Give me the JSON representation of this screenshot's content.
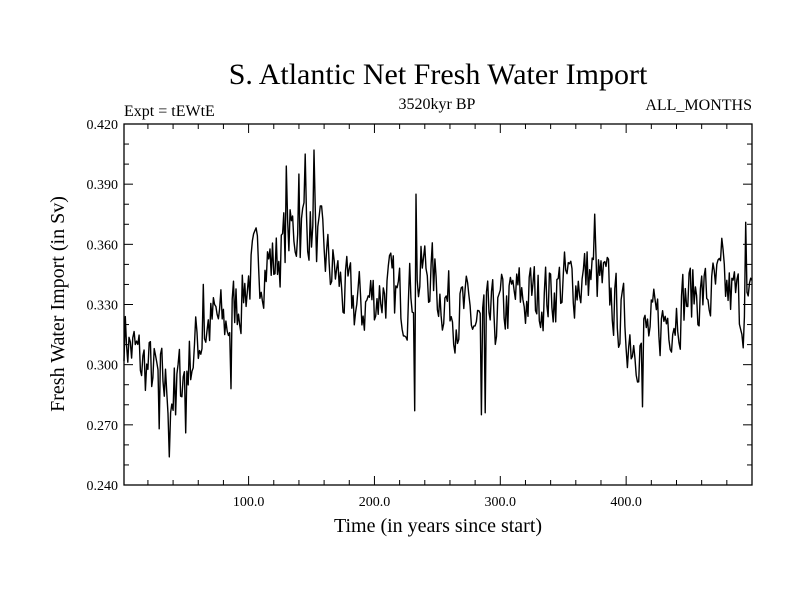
{
  "chart_data": {
    "type": "line",
    "title": "S. Atlantic Net Fresh Water Import",
    "experiment_label": "Expt = tEWtE",
    "period_label": "3520kyr BP",
    "months_label": "ALL_MONTHS",
    "xlabel": "Time (in years since start)",
    "ylabel": "Fresh Water Import (in Sv)",
    "xlim": [
      1,
      500
    ],
    "ylim": [
      0.24,
      0.42
    ],
    "xticks": [
      100,
      200,
      300,
      400
    ],
    "xtick_labels": [
      "100.0",
      "200.0",
      "300.0",
      "400.0"
    ],
    "yticks": [
      0.24,
      0.27,
      0.3,
      0.33,
      0.36,
      0.39,
      0.42
    ],
    "ytick_labels": [
      "0.240",
      "0.270",
      "0.300",
      "0.330",
      "0.360",
      "0.390",
      "0.420"
    ],
    "grid": false,
    "series": [
      {
        "name": "Net Fresh Water Import",
        "control_x": [
          1,
          5,
          10,
          15,
          20,
          25,
          30,
          35,
          40,
          45,
          50,
          55,
          60,
          65,
          70,
          75,
          80,
          85,
          90,
          95,
          100,
          105,
          110,
          115,
          120,
          125,
          130,
          135,
          140,
          145,
          150,
          155,
          160,
          165,
          170,
          175,
          180,
          185,
          190,
          195,
          200,
          205,
          210,
          215,
          220,
          225,
          230,
          235,
          240,
          245,
          250,
          255,
          260,
          265,
          270,
          275,
          280,
          285,
          290,
          295,
          300,
          305,
          310,
          315,
          320,
          325,
          330,
          335,
          340,
          345,
          350,
          355,
          360,
          365,
          370,
          375,
          380,
          385,
          390,
          395,
          400,
          405,
          410,
          415,
          420,
          425,
          430,
          435,
          440,
          445,
          450,
          455,
          460,
          465,
          470,
          475,
          480,
          485,
          490,
          495,
          500
        ],
        "control_y": [
          0.318,
          0.31,
          0.305,
          0.3,
          0.298,
          0.295,
          0.29,
          0.288,
          0.286,
          0.292,
          0.298,
          0.305,
          0.312,
          0.318,
          0.32,
          0.322,
          0.32,
          0.322,
          0.33,
          0.335,
          0.343,
          0.348,
          0.35,
          0.352,
          0.35,
          0.356,
          0.362,
          0.366,
          0.368,
          0.372,
          0.368,
          0.36,
          0.355,
          0.348,
          0.345,
          0.336,
          0.332,
          0.33,
          0.328,
          0.332,
          0.335,
          0.336,
          0.338,
          0.335,
          0.332,
          0.334,
          0.34,
          0.342,
          0.348,
          0.345,
          0.338,
          0.334,
          0.33,
          0.328,
          0.326,
          0.324,
          0.32,
          0.318,
          0.32,
          0.322,
          0.326,
          0.328,
          0.332,
          0.334,
          0.332,
          0.335,
          0.334,
          0.336,
          0.335,
          0.338,
          0.34,
          0.34,
          0.342,
          0.343,
          0.345,
          0.344,
          0.34,
          0.336,
          0.33,
          0.324,
          0.318,
          0.314,
          0.312,
          0.314,
          0.316,
          0.32,
          0.322,
          0.326,
          0.328,
          0.332,
          0.334,
          0.336,
          0.335,
          0.334,
          0.336,
          0.338,
          0.336,
          0.334,
          0.33,
          0.328,
          0.326
        ],
        "extremes": [
          {
            "x": 37,
            "y": 0.254
          },
          {
            "x": 29,
            "y": 0.268
          },
          {
            "x": 50,
            "y": 0.266
          },
          {
            "x": 42,
            "y": 0.275
          },
          {
            "x": 130,
            "y": 0.399
          },
          {
            "x": 145,
            "y": 0.405
          },
          {
            "x": 152,
            "y": 0.407
          },
          {
            "x": 140,
            "y": 0.395
          },
          {
            "x": 232,
            "y": 0.277
          },
          {
            "x": 285,
            "y": 0.275
          },
          {
            "x": 288,
            "y": 0.276
          },
          {
            "x": 233,
            "y": 0.385
          },
          {
            "x": 375,
            "y": 0.375
          },
          {
            "x": 413,
            "y": 0.279
          },
          {
            "x": 86,
            "y": 0.288
          },
          {
            "x": 64,
            "y": 0.34
          },
          {
            "x": 495,
            "y": 0.371
          },
          {
            "x": 476,
            "y": 0.363
          }
        ],
        "noise_amplitude": 0.018,
        "seed": 7
      }
    ]
  }
}
